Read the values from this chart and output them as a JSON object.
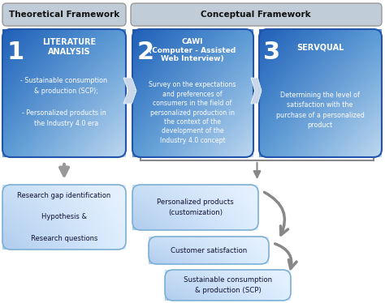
{
  "bg_color": "#ffffff",
  "header_left_text": "Theoretical Framework",
  "header_right_text": "Conceptual Framework",
  "box1_number": "1",
  "box1_title": "LITERATURE\nANALYSIS",
  "box1_body": "- Sustainable consumption\n  & production (SCP);\n\n- Personalized products in\n  the Industry 4.0 era",
  "box2_number": "2",
  "box2_title": "CAWI\n(Computer - Assisted\nWeb Interview)",
  "box2_body": "Survey on the expectations\nand preferences of\nconsumers in the field of\npersonalized production in\nthe context of the\ndevelopment of the\nIndustry 4.0 concept",
  "box3_number": "3",
  "box3_title": "SERVQUAL",
  "box3_body": "Determining the level of\nsatisfaction with the\npurchase of a personalized\nproduct",
  "box_bottom_left_text": "Research gap identification\n\nHypothesis &\n\nResearch questions",
  "box_bottom_mid_text": "Personalized products\n(customization)",
  "box_bottom_mid2_text": "Customer satisfaction",
  "box_bottom_mid3_text": "Sustainable consumption\n& production (SCP)",
  "grad_dark": "#2060b8",
  "grad_mid": "#5b9bd5",
  "grad_light": "#bdd7f0",
  "bot_box_face": "#ddeeff",
  "bot_box_border": "#7bafd4",
  "header_face": "#c0cdd8",
  "header_border": "#999999"
}
